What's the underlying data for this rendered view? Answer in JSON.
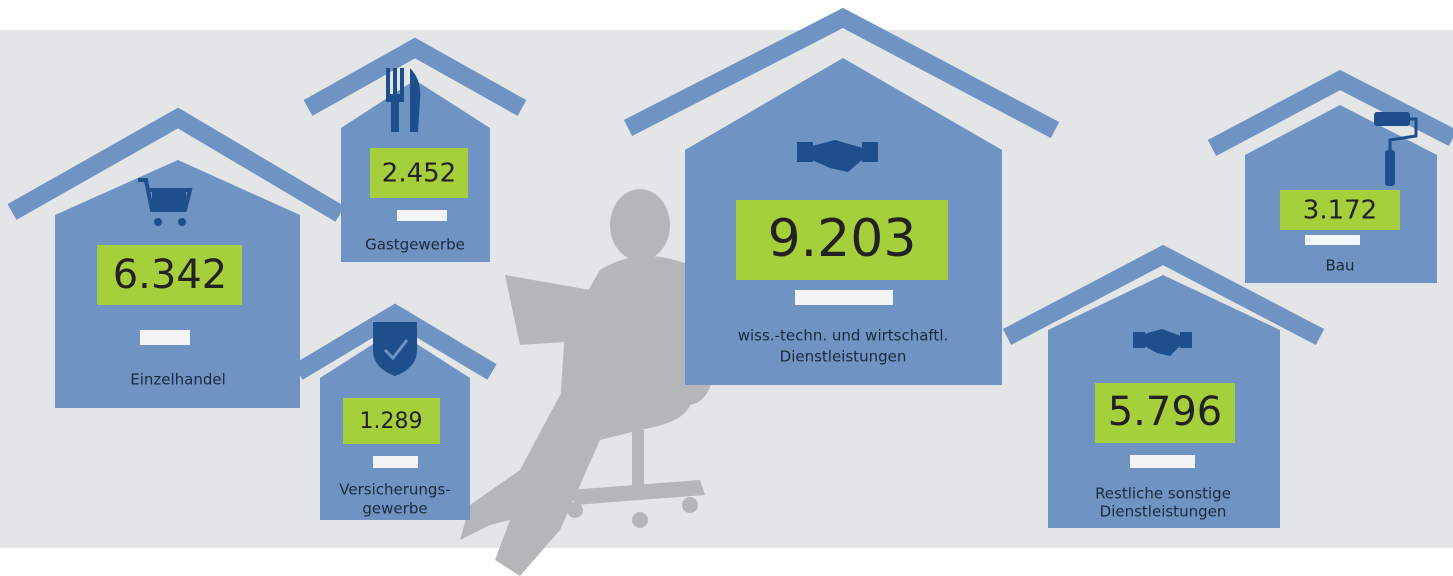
{
  "houses": [
    {
      "label": [
        "Einzelhandel"
      ],
      "value": "6.342"
    },
    {
      "label": [
        "Gastgewerbe"
      ],
      "value": "2.452"
    },
    {
      "label": [
        "Versicherungs-",
        "gewerbe"
      ],
      "value": "1.289"
    },
    {
      "label": [
        "wiss.-techn. und wirtschaftl.",
        "Dienstleistungen"
      ],
      "value": "9.203"
    },
    {
      "label": [
        "Restliche sonstige",
        "Dienstleistungen"
      ],
      "value": "5.796"
    },
    {
      "label": [
        "Bau"
      ],
      "value": "3.172"
    }
  ]
}
